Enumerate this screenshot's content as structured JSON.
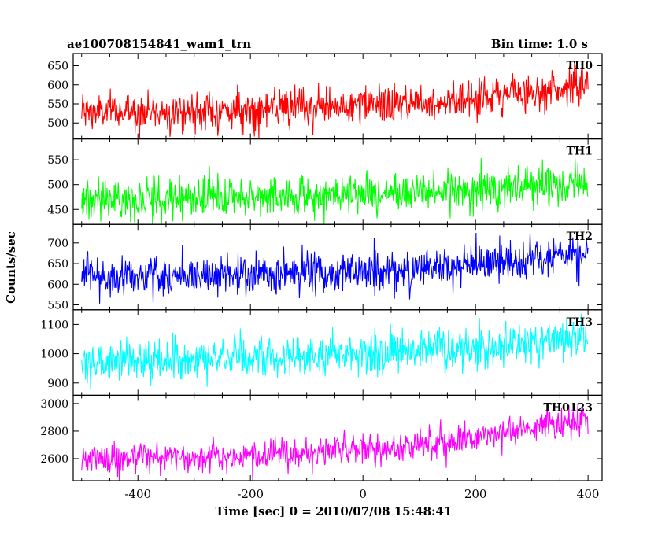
{
  "header": {
    "title": "ae100708154841_wam1_trn",
    "bin_time": "Bin time: 1.0 s"
  },
  "chart_data": {
    "type": "line",
    "title": "ae100708154841_wam1_trn",
    "subtitle": "Bin time: 1.0 s",
    "xlabel": "Time [sec] 0 = 2010/07/08 15:48:41",
    "ylabel": "Counts/sec",
    "xlim": [
      -515,
      425
    ],
    "x_ticks": [
      -400,
      -200,
      0,
      200,
      400
    ],
    "x_start": -500,
    "x_end": 400,
    "x_step": 1,
    "grid": false,
    "panels": [
      {
        "name": "TH0",
        "color": "#ff0000",
        "ylim": [
          458,
          682
        ],
        "y_ticks": [
          500,
          550,
          600,
          650
        ],
        "trend_x": [
          -500,
          -200,
          0,
          200,
          400
        ],
        "trend_y": [
          528,
          532,
          545,
          565,
          600
        ],
        "noise_sigma": 25
      },
      {
        "name": "TH1",
        "color": "#00ff00",
        "ylim": [
          420,
          592
        ],
        "y_ticks": [
          450,
          500,
          550
        ],
        "trend_x": [
          -500,
          -200,
          0,
          200,
          400
        ],
        "trend_y": [
          470,
          475,
          480,
          490,
          505
        ],
        "noise_sigma": 20
      },
      {
        "name": "TH2",
        "color": "#0000ff",
        "ylim": [
          538,
          745
        ],
        "y_ticks": [
          550,
          600,
          650,
          700
        ],
        "trend_x": [
          -500,
          -200,
          0,
          200,
          400
        ],
        "trend_y": [
          620,
          622,
          630,
          645,
          670
        ],
        "noise_sigma": 25
      },
      {
        "name": "TH3",
        "color": "#00ffff",
        "ylim": [
          858,
          1150
        ],
        "y_ticks": [
          900,
          1000,
          1100
        ],
        "trend_x": [
          -500,
          -200,
          0,
          200,
          400
        ],
        "trend_y": [
          970,
          985,
          1000,
          1020,
          1060
        ],
        "noise_sigma": 35
      },
      {
        "name": "TH0123",
        "color": "#ff00ff",
        "ylim": [
          2440,
          3060
        ],
        "y_ticks": [
          2600,
          2800,
          3000
        ],
        "trend_x": [
          -500,
          -200,
          0,
          200,
          400
        ],
        "trend_y": [
          2600,
          2620,
          2660,
          2750,
          2900
        ],
        "noise_sigma": 55
      }
    ]
  }
}
